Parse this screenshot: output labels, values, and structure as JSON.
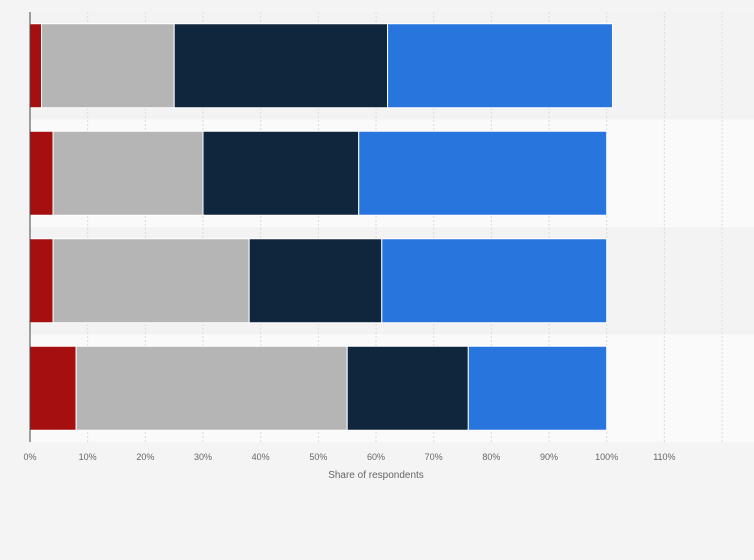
{
  "chart_data": {
    "type": "bar",
    "orientation": "horizontal",
    "stacked": true,
    "categories": [
      "",
      "",
      "",
      ""
    ],
    "series": [
      {
        "values": [
          2,
          4,
          4,
          8
        ],
        "color": "#a50f0f"
      },
      {
        "values": [
          23,
          26,
          34,
          47
        ],
        "color": "#b5b5b5"
      },
      {
        "values": [
          37,
          27,
          23,
          21
        ],
        "color": "#10263c"
      },
      {
        "values": [
          39,
          43,
          39,
          24
        ],
        "color": "#2876dd"
      }
    ],
    "xlabel": "Share of respondents",
    "ylabel": "",
    "xlim": [
      0,
      120
    ],
    "xticks": [
      "0%",
      "10%",
      "20%",
      "30%",
      "40%",
      "50%",
      "60%",
      "70%",
      "80%",
      "90%",
      "100%",
      "110%"
    ],
    "grid": true,
    "legend": "none"
  }
}
